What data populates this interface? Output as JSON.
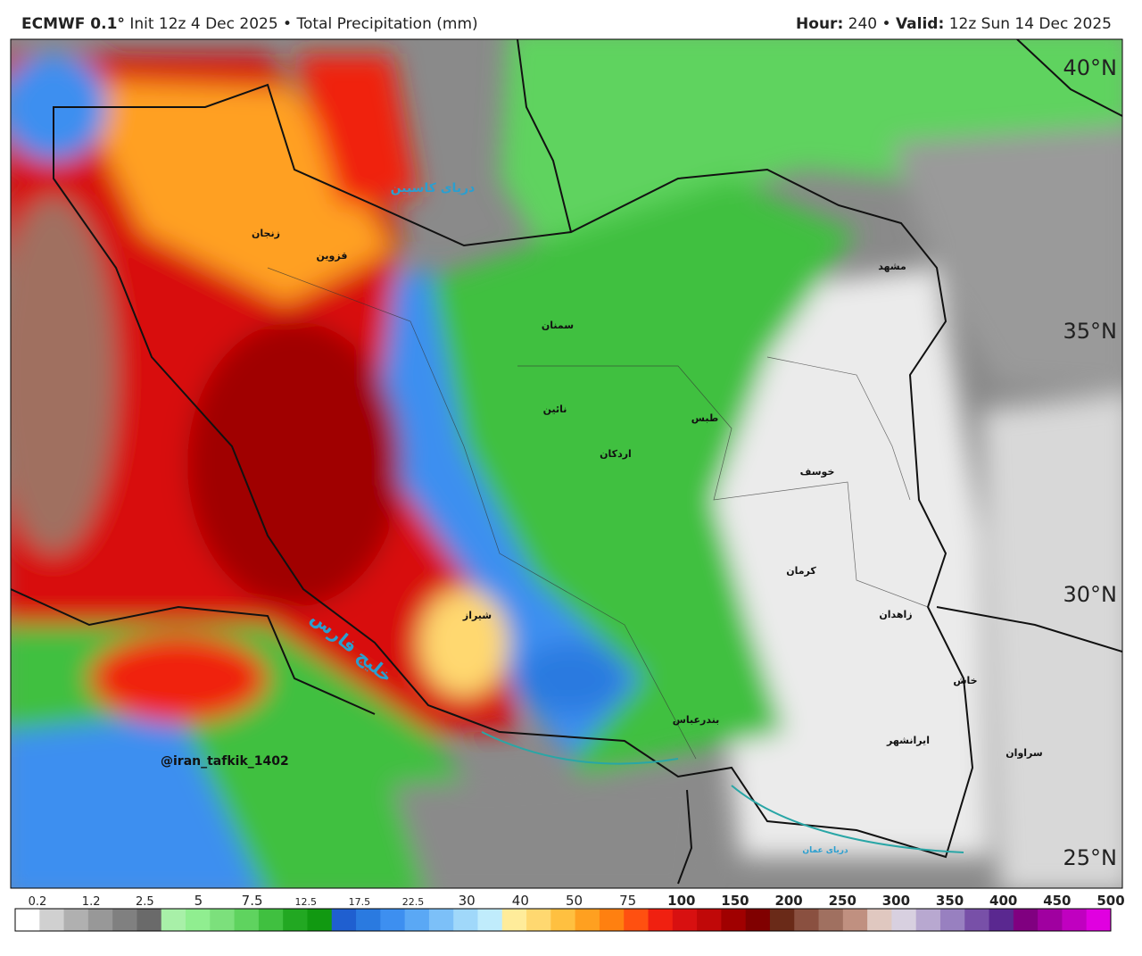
{
  "header": {
    "model": "ECMWF 0.1°",
    "init": "Init 12z 4 Dec 2025",
    "separator": "•",
    "field": "Total Precipitation (mm)",
    "hour_label": "Hour:",
    "hour": "240",
    "valid_label": "Valid:",
    "valid": "12z Sun 14 Dec 2025"
  },
  "map": {
    "latitude_labels": [
      "40°N",
      "35°N",
      "30°N",
      "25°N"
    ],
    "watermark": "@iran_tafkik_1402",
    "places": [
      "مشهد",
      "طبس",
      "کرمان",
      "زاهدان",
      "شیراز",
      "خوسف",
      "بندرعباس",
      "خلیج فارس",
      "دریای کاسپین",
      "دریای عمان",
      "اردکان",
      "نائین",
      "سمنان",
      "ایرانشهر",
      "سراوان",
      "خاش",
      "قزوین",
      "زنجان"
    ]
  },
  "colorbar": {
    "ticks": [
      0.2,
      1.2,
      2.5,
      5,
      7.5,
      12.5,
      17.5,
      22.5,
      30,
      40,
      50,
      75,
      100,
      150,
      200,
      250,
      300,
      350,
      400,
      450,
      500
    ],
    "colors": [
      "#ffffff",
      "#d0d0d0",
      "#b0b0b0",
      "#989898",
      "#808080",
      "#6a6a6a",
      "#a8f0a8",
      "#90ee90",
      "#7ce07c",
      "#5fd35f",
      "#40c040",
      "#22a822",
      "#119911",
      "#1f5fd0",
      "#2a7ae0",
      "#3d8ff0",
      "#5aa8f5",
      "#7cc0f8",
      "#a0d8fa",
      "#c0ecfc",
      "#ffec9a",
      "#ffd870",
      "#ffc040",
      "#ffa020",
      "#ff8010",
      "#ff5010",
      "#f02010",
      "#d81010",
      "#c00808",
      "#a00000",
      "#800000",
      "#6a2a18",
      "#8a5040",
      "#a07060",
      "#c09080",
      "#e0c8c0",
      "#d8d0e0",
      "#b8a8d0",
      "#9880c0",
      "#7850a8",
      "#5a2890",
      "#800080",
      "#a000a0",
      "#c000c0",
      "#e000e0"
    ]
  }
}
